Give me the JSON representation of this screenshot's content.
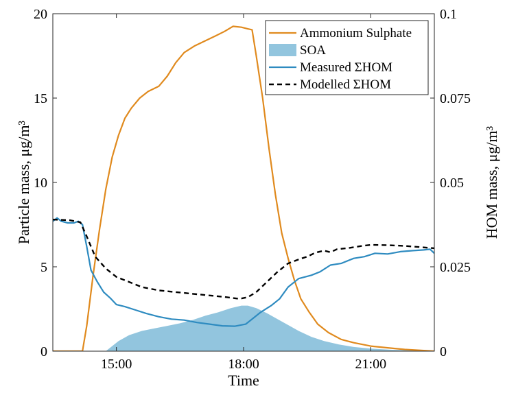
{
  "chart_data": {
    "type": "line",
    "xlabel": "Time",
    "ylabel_left": "Particle mass, μg/m³",
    "ylabel_right": "HOM mass, μg/m³",
    "x_unit": "hours of day",
    "xlim": [
      13.5,
      22.5
    ],
    "ylim_left": [
      0,
      20
    ],
    "ylim_right": [
      0,
      0.1
    ],
    "x_ticks": [
      {
        "value": 15,
        "label": "15:00"
      },
      {
        "value": 18,
        "label": "18:00"
      },
      {
        "value": 21,
        "label": "21:00"
      }
    ],
    "y_ticks_left": [
      {
        "value": 0,
        "label": "0"
      },
      {
        "value": 5,
        "label": "5"
      },
      {
        "value": 10,
        "label": "10"
      },
      {
        "value": 15,
        "label": "15"
      },
      {
        "value": 20,
        "label": "20"
      }
    ],
    "y_ticks_right": [
      {
        "value": 0,
        "label": "0"
      },
      {
        "value": 0.025,
        "label": "0.025"
      },
      {
        "value": 0.05,
        "label": "0.05"
      },
      {
        "value": 0.075,
        "label": "0.075"
      },
      {
        "value": 0.1,
        "label": "0.1"
      }
    ],
    "legend_position": "top-right",
    "grid": false,
    "series": [
      {
        "name": "Ammonium Sulphate",
        "kind": "line",
        "axis": "left",
        "color": "#E08A1E",
        "points": [
          [
            13.5,
            0
          ],
          [
            14.2,
            0
          ],
          [
            14.3,
            1.5
          ],
          [
            14.45,
            4.5
          ],
          [
            14.6,
            7.2
          ],
          [
            14.75,
            9.6
          ],
          [
            14.9,
            11.5
          ],
          [
            15.05,
            12.8
          ],
          [
            15.2,
            13.8
          ],
          [
            15.35,
            14.4
          ],
          [
            15.55,
            15.0
          ],
          [
            15.75,
            15.4
          ],
          [
            16.0,
            15.7
          ],
          [
            16.2,
            16.3
          ],
          [
            16.4,
            17.1
          ],
          [
            16.6,
            17.7
          ],
          [
            16.85,
            18.1
          ],
          [
            17.1,
            18.4
          ],
          [
            17.35,
            18.7
          ],
          [
            17.55,
            18.95
          ],
          [
            17.75,
            19.25
          ],
          [
            17.95,
            19.2
          ],
          [
            18.1,
            19.1
          ],
          [
            18.2,
            19.05
          ],
          [
            18.3,
            17.5
          ],
          [
            18.45,
            15.0
          ],
          [
            18.6,
            12.0
          ],
          [
            18.75,
            9.3
          ],
          [
            18.9,
            7.0
          ],
          [
            19.05,
            5.5
          ],
          [
            19.2,
            4.2
          ],
          [
            19.35,
            3.1
          ],
          [
            19.55,
            2.3
          ],
          [
            19.75,
            1.6
          ],
          [
            20.0,
            1.1
          ],
          [
            20.3,
            0.7
          ],
          [
            20.6,
            0.5
          ],
          [
            21.0,
            0.3
          ],
          [
            21.4,
            0.2
          ],
          [
            21.8,
            0.1
          ],
          [
            22.5,
            0
          ]
        ]
      },
      {
        "name": "SOA",
        "kind": "area",
        "axis": "left",
        "color": "#92C5DE",
        "points": [
          [
            13.5,
            0
          ],
          [
            14.75,
            0
          ],
          [
            14.9,
            0.3
          ],
          [
            15.05,
            0.6
          ],
          [
            15.3,
            0.95
          ],
          [
            15.6,
            1.2
          ],
          [
            15.9,
            1.35
          ],
          [
            16.2,
            1.5
          ],
          [
            16.5,
            1.65
          ],
          [
            16.8,
            1.85
          ],
          [
            17.1,
            2.1
          ],
          [
            17.4,
            2.3
          ],
          [
            17.7,
            2.55
          ],
          [
            17.95,
            2.7
          ],
          [
            18.1,
            2.7
          ],
          [
            18.3,
            2.55
          ],
          [
            18.55,
            2.25
          ],
          [
            18.8,
            1.9
          ],
          [
            19.05,
            1.55
          ],
          [
            19.3,
            1.2
          ],
          [
            19.6,
            0.85
          ],
          [
            19.9,
            0.6
          ],
          [
            20.25,
            0.4
          ],
          [
            20.6,
            0.25
          ],
          [
            21.0,
            0.15
          ],
          [
            21.5,
            0.08
          ],
          [
            22.0,
            0.05
          ],
          [
            22.5,
            0.03
          ]
        ]
      },
      {
        "name": "Measured ΣHOM",
        "kind": "line",
        "axis": "right",
        "color": "#2E8BC0",
        "points": [
          [
            13.5,
            0.0385
          ],
          [
            13.6,
            0.0395
          ],
          [
            13.7,
            0.0385
          ],
          [
            13.85,
            0.038
          ],
          [
            14.0,
            0.038
          ],
          [
            14.1,
            0.0385
          ],
          [
            14.2,
            0.0375
          ],
          [
            14.3,
            0.031
          ],
          [
            14.4,
            0.024
          ],
          [
            14.55,
            0.0205
          ],
          [
            14.7,
            0.0175
          ],
          [
            14.85,
            0.0158
          ],
          [
            15.0,
            0.0138
          ],
          [
            15.2,
            0.0132
          ],
          [
            15.45,
            0.0122
          ],
          [
            15.7,
            0.0112
          ],
          [
            16.0,
            0.0102
          ],
          [
            16.3,
            0.0095
          ],
          [
            16.6,
            0.0092
          ],
          [
            16.9,
            0.0085
          ],
          [
            17.2,
            0.008
          ],
          [
            17.5,
            0.0075
          ],
          [
            17.8,
            0.0074
          ],
          [
            18.05,
            0.008
          ],
          [
            18.2,
            0.0095
          ],
          [
            18.4,
            0.0115
          ],
          [
            18.65,
            0.0135
          ],
          [
            18.85,
            0.0155
          ],
          [
            19.05,
            0.019
          ],
          [
            19.3,
            0.0215
          ],
          [
            19.6,
            0.0225
          ],
          [
            19.8,
            0.0235
          ],
          [
            20.05,
            0.0255
          ],
          [
            20.3,
            0.026
          ],
          [
            20.6,
            0.0275
          ],
          [
            20.85,
            0.028
          ],
          [
            21.1,
            0.029
          ],
          [
            21.4,
            0.0288
          ],
          [
            21.7,
            0.0295
          ],
          [
            22.0,
            0.0298
          ],
          [
            22.25,
            0.03
          ],
          [
            22.4,
            0.0302
          ],
          [
            22.5,
            0.029
          ]
        ]
      },
      {
        "name": "Modelled ΣHOM",
        "kind": "line",
        "axis": "right",
        "color": "#000000",
        "dashed": true,
        "points": [
          [
            13.5,
            0.039
          ],
          [
            13.9,
            0.0388
          ],
          [
            14.15,
            0.0382
          ],
          [
            14.3,
            0.034
          ],
          [
            14.5,
            0.028
          ],
          [
            14.75,
            0.0245
          ],
          [
            15.0,
            0.022
          ],
          [
            15.3,
            0.0205
          ],
          [
            15.6,
            0.019
          ],
          [
            16.0,
            0.018
          ],
          [
            16.4,
            0.0175
          ],
          [
            16.8,
            0.017
          ],
          [
            17.2,
            0.0165
          ],
          [
            17.6,
            0.016
          ],
          [
            17.9,
            0.0155
          ],
          [
            18.1,
            0.016
          ],
          [
            18.3,
            0.0175
          ],
          [
            18.55,
            0.0205
          ],
          [
            18.8,
            0.0235
          ],
          [
            19.05,
            0.026
          ],
          [
            19.3,
            0.0272
          ],
          [
            19.5,
            0.028
          ],
          [
            19.7,
            0.0292
          ],
          [
            19.9,
            0.0298
          ],
          [
            20.05,
            0.0293
          ],
          [
            20.2,
            0.0302
          ],
          [
            20.5,
            0.0306
          ],
          [
            20.8,
            0.0312
          ],
          [
            21.0,
            0.0315
          ],
          [
            21.4,
            0.0314
          ],
          [
            21.8,
            0.0312
          ],
          [
            22.2,
            0.0308
          ],
          [
            22.5,
            0.0305
          ]
        ]
      }
    ]
  }
}
